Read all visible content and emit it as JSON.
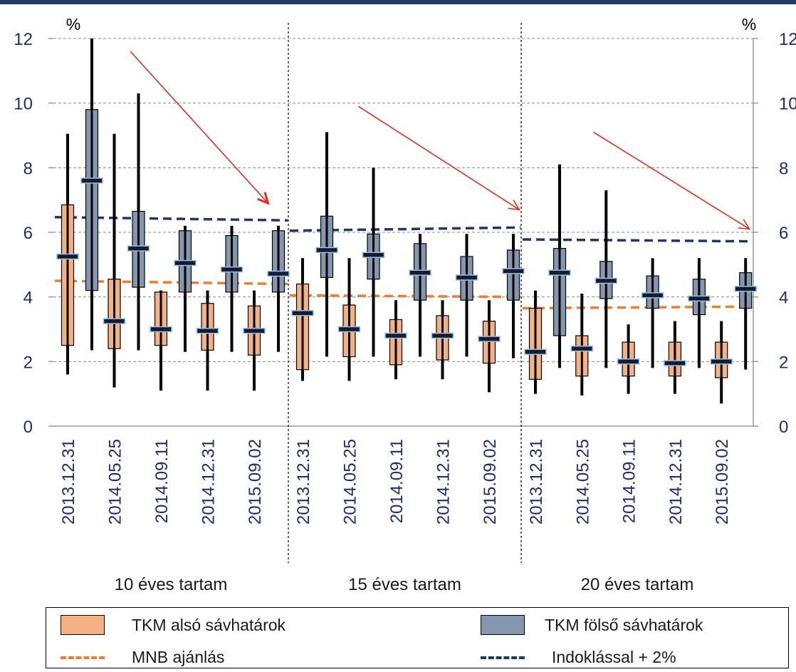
{
  "chart_data": {
    "type": "box",
    "y_unit_label": "%",
    "ylim": [
      0,
      12
    ],
    "yticks": [
      0,
      2,
      4,
      6,
      8,
      10,
      12
    ],
    "dates": [
      "2013.12.31",
      "2014.05.25",
      "2014.09.11",
      "2014.12.31",
      "2015.09.02"
    ],
    "groups": [
      {
        "label": "10 éves tartam",
        "lower": [
          {
            "min": 1.6,
            "q1": 2.5,
            "mid": 5.25,
            "q3": 6.85,
            "max": 9.05
          },
          {
            "min": 1.2,
            "q1": 2.4,
            "mid": 3.25,
            "q3": 4.55,
            "max": 9.05
          },
          {
            "min": 1.1,
            "q1": 2.5,
            "mid": 3.0,
            "q3": 4.15,
            "max": 4.2
          },
          {
            "min": 1.1,
            "q1": 2.35,
            "mid": 2.95,
            "q3": 3.8,
            "max": 4.2
          },
          {
            "min": 1.1,
            "q1": 2.2,
            "mid": 2.95,
            "q3": 3.72,
            "max": 4.2
          }
        ],
        "upper": [
          {
            "min": 2.35,
            "q1": 4.2,
            "mid": 7.6,
            "q3": 9.8,
            "max": 12.0
          },
          {
            "min": 2.35,
            "q1": 4.3,
            "mid": 5.5,
            "q3": 6.65,
            "max": 10.3
          },
          {
            "min": 2.3,
            "q1": 4.15,
            "mid": 5.05,
            "q3": 6.05,
            "max": 6.2
          },
          {
            "min": 2.3,
            "q1": 4.15,
            "mid": 4.85,
            "q3": 5.9,
            "max": 6.2
          },
          {
            "min": 2.3,
            "q1": 4.15,
            "mid": 4.72,
            "q3": 6.05,
            "max": 6.2
          }
        ],
        "mnb": [
          4.5,
          4.4
        ],
        "indoklas": [
          6.47,
          6.37
        ]
      },
      {
        "label": "15 éves tartam",
        "lower": [
          {
            "min": 1.4,
            "q1": 1.75,
            "mid": 3.5,
            "q3": 4.4,
            "max": 5.2
          },
          {
            "min": 1.4,
            "q1": 2.15,
            "mid": 3.0,
            "q3": 3.75,
            "max": 5.2
          },
          {
            "min": 1.45,
            "q1": 1.9,
            "mid": 2.8,
            "q3": 3.3,
            "max": 3.9
          },
          {
            "min": 1.45,
            "q1": 2.05,
            "mid": 2.8,
            "q3": 3.42,
            "max": 3.9
          },
          {
            "min": 1.05,
            "q1": 1.95,
            "mid": 2.7,
            "q3": 3.25,
            "max": 3.9
          }
        ],
        "upper": [
          {
            "min": 2.15,
            "q1": 4.6,
            "mid": 5.45,
            "q3": 6.5,
            "max": 9.1
          },
          {
            "min": 2.15,
            "q1": 4.55,
            "mid": 5.3,
            "q3": 5.95,
            "max": 8.0
          },
          {
            "min": 2.15,
            "q1": 3.9,
            "mid": 4.75,
            "q3": 5.65,
            "max": 5.95
          },
          {
            "min": 2.15,
            "q1": 3.9,
            "mid": 4.6,
            "q3": 5.25,
            "max": 5.95
          },
          {
            "min": 2.1,
            "q1": 3.9,
            "mid": 4.8,
            "q3": 5.45,
            "max": 5.95
          }
        ],
        "mnb": [
          4.05,
          4.0
        ],
        "indoklas": [
          6.05,
          6.15
        ]
      },
      {
        "label": "20 éves tartam",
        "lower": [
          {
            "min": 1.0,
            "q1": 1.45,
            "mid": 2.3,
            "q3": 3.65,
            "max": 4.2
          },
          {
            "min": 0.95,
            "q1": 1.55,
            "mid": 2.4,
            "q3": 2.8,
            "max": 4.1
          },
          {
            "min": 1.0,
            "q1": 1.55,
            "mid": 2.0,
            "q3": 2.6,
            "max": 3.15
          },
          {
            "min": 1.0,
            "q1": 1.55,
            "mid": 1.95,
            "q3": 2.6,
            "max": 3.25
          },
          {
            "min": 0.7,
            "q1": 1.5,
            "mid": 2.0,
            "q3": 2.6,
            "max": 3.25
          }
        ],
        "upper": [
          {
            "min": 1.8,
            "q1": 2.8,
            "mid": 4.75,
            "q3": 5.5,
            "max": 8.1
          },
          {
            "min": 1.8,
            "q1": 3.95,
            "mid": 4.5,
            "q3": 5.1,
            "max": 7.3
          },
          {
            "min": 1.8,
            "q1": 3.65,
            "mid": 4.05,
            "q3": 4.65,
            "max": 5.2
          },
          {
            "min": 1.8,
            "q1": 3.45,
            "mid": 3.95,
            "q3": 4.55,
            "max": 5.2
          },
          {
            "min": 1.75,
            "q1": 3.65,
            "mid": 4.25,
            "q3": 4.75,
            "max": 5.2
          }
        ],
        "mnb": [
          3.65,
          3.7
        ],
        "indoklas": [
          5.78,
          5.72
        ]
      }
    ],
    "trend_arrows": [
      {
        "from": [
          0.2,
          11.6
        ],
        "to": [
          1.55,
          6.9
        ]
      },
      {
        "from": [
          0.05,
          9.9
        ],
        "to": [
          1.9,
          6.7
        ]
      },
      {
        "from": [
          0.1,
          9.1
        ],
        "to": [
          1.85,
          6.1
        ]
      }
    ],
    "legend": [
      {
        "key": "lower",
        "label": "TKM alsó sávhatárok"
      },
      {
        "key": "upper",
        "label": "TKM fölső sávhatárok"
      },
      {
        "key": "mnb",
        "label": "MNB ajánlás"
      },
      {
        "key": "indoklas",
        "label": "Indoklással + 2%"
      }
    ],
    "grid": true
  },
  "colors": {
    "lower_fill": "#f4b183",
    "upper_fill": "#8497b0",
    "mnb_line": "#ed7d31",
    "indoklas_line": "#1f3864",
    "arrow": "#e0301e",
    "axis_text": "#1f2d6e",
    "grid": "#8c8c8c",
    "median_mark": "#8fc4e8"
  }
}
